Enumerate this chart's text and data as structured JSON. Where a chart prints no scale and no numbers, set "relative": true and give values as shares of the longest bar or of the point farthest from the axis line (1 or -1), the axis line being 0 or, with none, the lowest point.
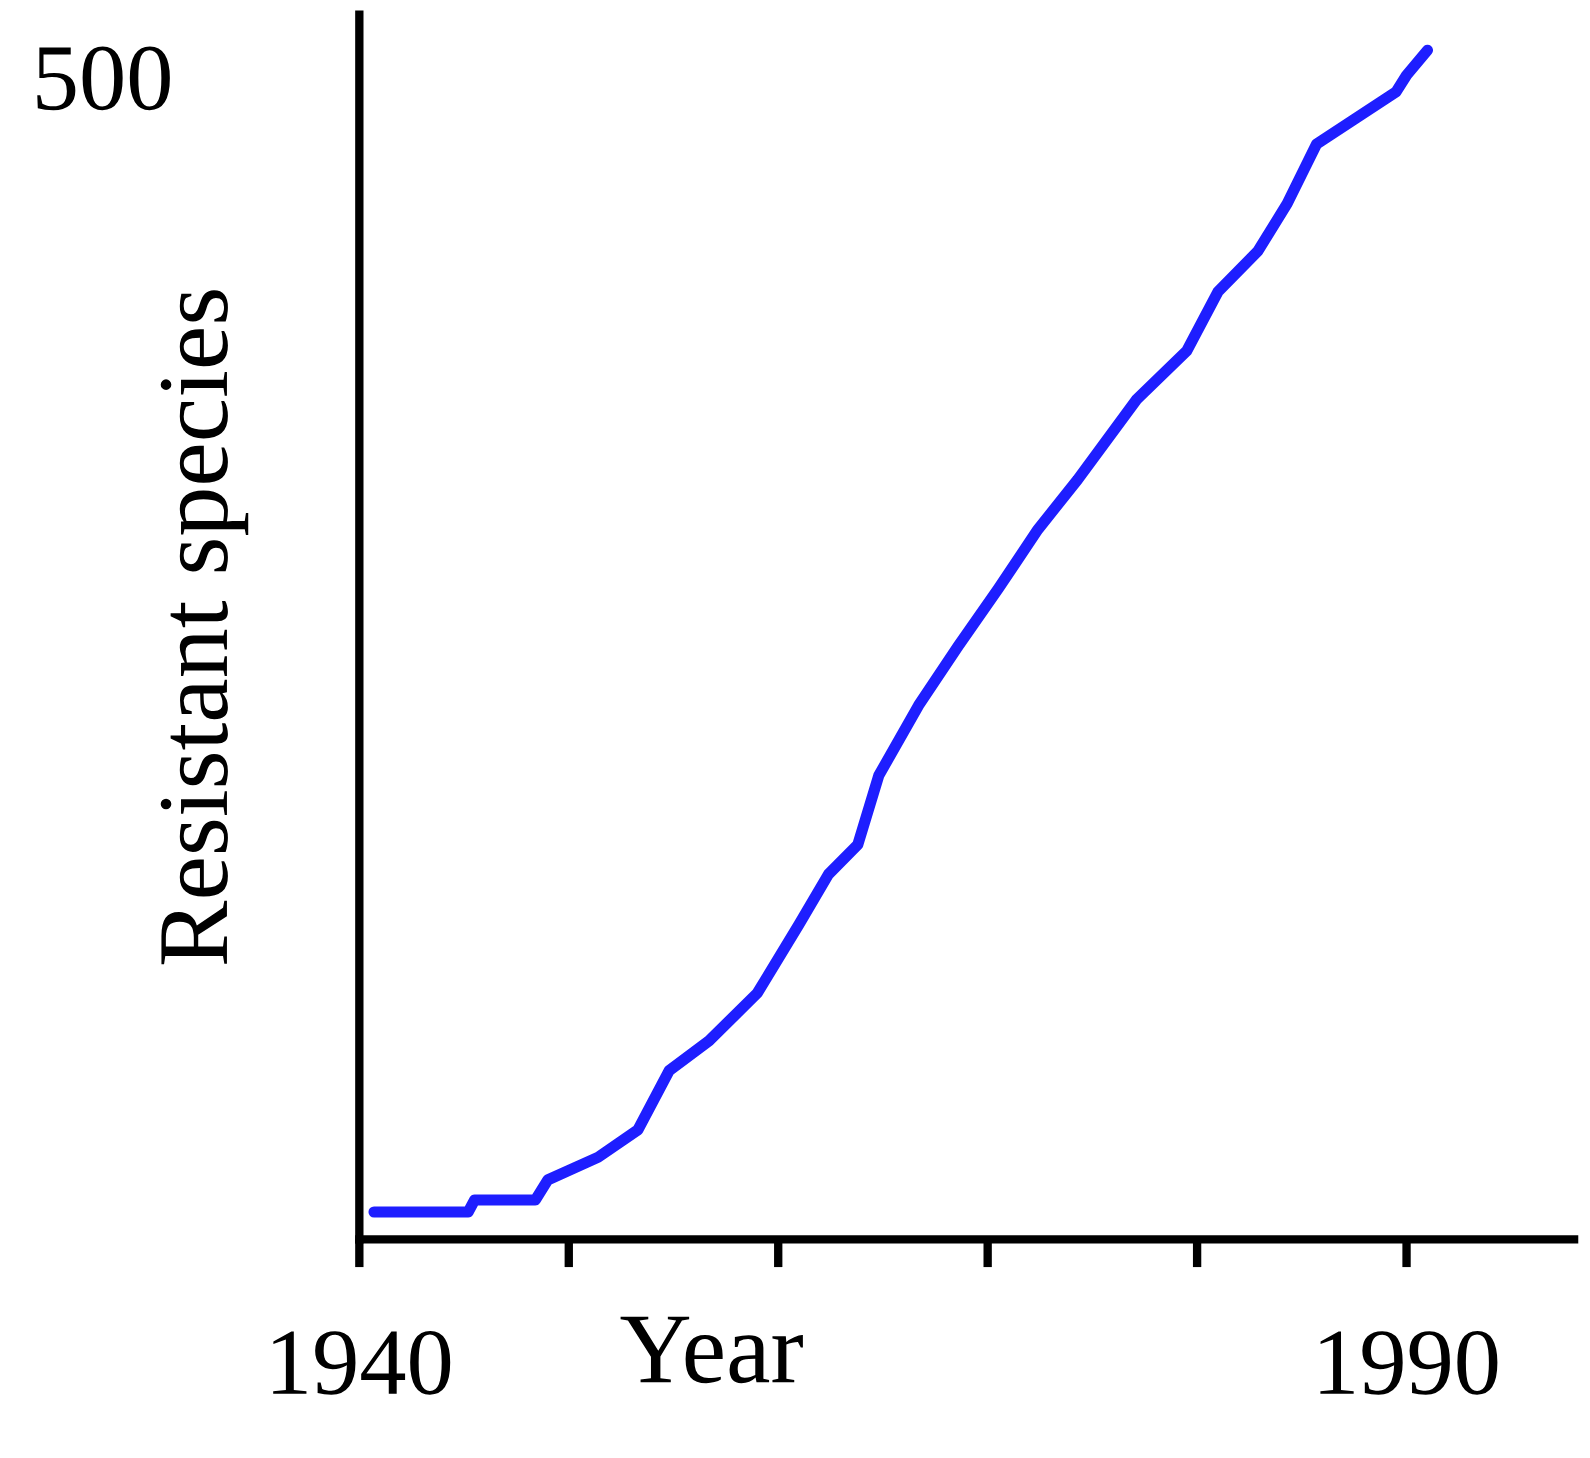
{
  "chart_data": {
    "type": "line",
    "xlabel": "Year",
    "ylabel": "Resistant species",
    "relative": true,
    "annotations": [
      "500"
    ],
    "series": [
      {
        "color": "#1e1eff",
        "x": [
          1940.7,
          1945.2,
          1945.5,
          1948.4,
          1949,
          1951.4,
          1953.3,
          1954.8,
          1956.7,
          1959,
          1961,
          1962.4,
          1963.8,
          1964.8,
          1966.7,
          1968.6,
          1970.5,
          1972.4,
          1974.3,
          1977.1,
          1979.5,
          1981,
          1982.9,
          1984.3,
          1985.7,
          1989.5,
          1990,
          1991
        ],
        "values": [
          0.023,
          0.023,
          0.033,
          0.033,
          0.05,
          0.069,
          0.092,
          0.142,
          0.167,
          0.207,
          0.265,
          0.307,
          0.332,
          0.39,
          0.449,
          0.499,
          0.547,
          0.597,
          0.639,
          0.706,
          0.747,
          0.797,
          0.831,
          0.871,
          0.921,
          0.965,
          0.979,
          1
        ]
      }
    ],
    "xlim": [
      1940,
      1998
    ],
    "xticks": [
      1940,
      {
        "value": 1950,
        "label": null
      },
      {
        "value": 1960,
        "label": null
      },
      {
        "value": 1970,
        "label": null
      },
      {
        "value": 1980,
        "label": null
      },
      1990
    ],
    "grid": false,
    "marker": "none",
    "line_style": "solid"
  }
}
